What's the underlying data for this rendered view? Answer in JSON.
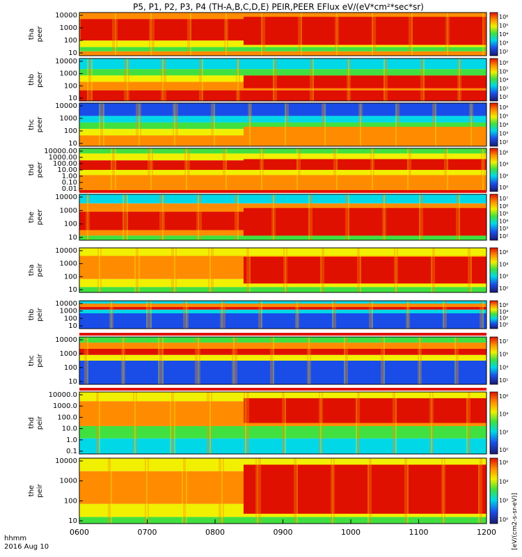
{
  "title": "P5, P1, P2, P3, P4 (TH-A,B,C,D,E) PEIR,PEER EFlux eV/(eV*cm²*sec*sr)",
  "colorbar_label": "[eV/(cm2-s-sr-eV)]",
  "time_axis": {
    "label_line1": "hhmm",
    "label_line2": "2016 Aug 10",
    "ticks": [
      "0600",
      "0700",
      "0800",
      "0900",
      "1000",
      "1100",
      "1200"
    ],
    "range_hours": [
      6,
      12
    ]
  },
  "colors": {
    "red": "#e01000",
    "orange": "#ff8c00",
    "yellow": "#f0f000",
    "green": "#40e040",
    "cyan": "#00d8e8",
    "blue": "#1a4de8",
    "darkblue": "#1a1a6e",
    "black": "#000000"
  },
  "chart_data": [
    {
      "type": "heatmap",
      "label1": "tha",
      "label2": "peer",
      "yticks": [
        "10000",
        "1000",
        "100",
        "10"
      ],
      "ylog": true,
      "cbar_ticks": [
        "10⁶",
        "10⁵",
        "10⁴",
        "10³",
        "10²"
      ],
      "has_flag_bar": false
    },
    {
      "type": "heatmap",
      "label1": "thb",
      "label2": "peer",
      "yticks": [
        "10000",
        "1000",
        "100",
        "10"
      ],
      "ylog": true,
      "cbar_ticks": [
        "10⁶",
        "10⁵",
        "10⁴",
        "10³",
        "10²"
      ],
      "has_flag_bar": false
    },
    {
      "type": "heatmap",
      "label1": "thc",
      "label2": "peer",
      "yticks": [
        "10000",
        "1000",
        "100",
        "10"
      ],
      "ylog": true,
      "cbar_ticks": [
        "10⁶",
        "10⁵",
        "10⁴",
        "10³",
        "10²"
      ],
      "has_flag_bar": false
    },
    {
      "type": "heatmap",
      "label1": "thd",
      "label2": "peer",
      "yticks": [
        "10000.00",
        "1000.00",
        "100.00",
        "10.00",
        "1.00",
        "0.10",
        "0.01"
      ],
      "ylog": true,
      "cbar_ticks": [
        "10⁶",
        "10⁴",
        "10²",
        "10⁰"
      ],
      "has_flag_bar": false
    },
    {
      "type": "heatmap",
      "label1": "the",
      "label2": "peer",
      "yticks": [
        "10000",
        "1000",
        "100",
        "10"
      ],
      "ylog": true,
      "cbar_ticks": [
        "10⁷",
        "10⁶",
        "10⁵",
        "10⁴",
        "10³",
        "10²"
      ],
      "has_flag_bar": true
    },
    {
      "type": "heatmap",
      "label1": "tha",
      "label2": "peir",
      "yticks": [
        "10000",
        "1000",
        "100",
        "10"
      ],
      "ylog": true,
      "cbar_ticks": [
        "10⁶",
        "10⁴",
        "10²",
        "10⁰"
      ],
      "has_flag_bar": false
    },
    {
      "type": "heatmap",
      "label1": "thb",
      "label2": "peir",
      "yticks": [
        "10000",
        "1000",
        "100",
        "10"
      ],
      "ylog": true,
      "cbar_ticks": [
        "10⁶",
        "10⁴",
        "10²",
        "10⁰"
      ],
      "has_flag_bar": false
    },
    {
      "type": "heatmap",
      "label1": "thc",
      "label2": "peir",
      "yticks": [
        "10000",
        "1000",
        "100",
        "10"
      ],
      "ylog": true,
      "cbar_ticks": [
        "10⁷",
        "10⁵",
        "10³",
        "10¹"
      ],
      "has_flag_bar": true
    },
    {
      "type": "heatmap",
      "label1": "thd",
      "label2": "peir",
      "yticks": [
        "10000.0",
        "1000.0",
        "100.0",
        "10.0",
        "1.0",
        "0.1"
      ],
      "ylog": true,
      "cbar_ticks": [
        "10⁶",
        "10⁴",
        "10²",
        "10⁰"
      ],
      "has_flag_bar": true
    },
    {
      "type": "heatmap",
      "label1": "the",
      "label2": "peir",
      "yticks": [
        "10000",
        "1000",
        "100",
        "10"
      ],
      "ylog": true,
      "cbar_ticks": [
        "10⁶",
        "10⁴",
        "10²",
        "10⁰"
      ],
      "has_flag_bar": false
    }
  ]
}
